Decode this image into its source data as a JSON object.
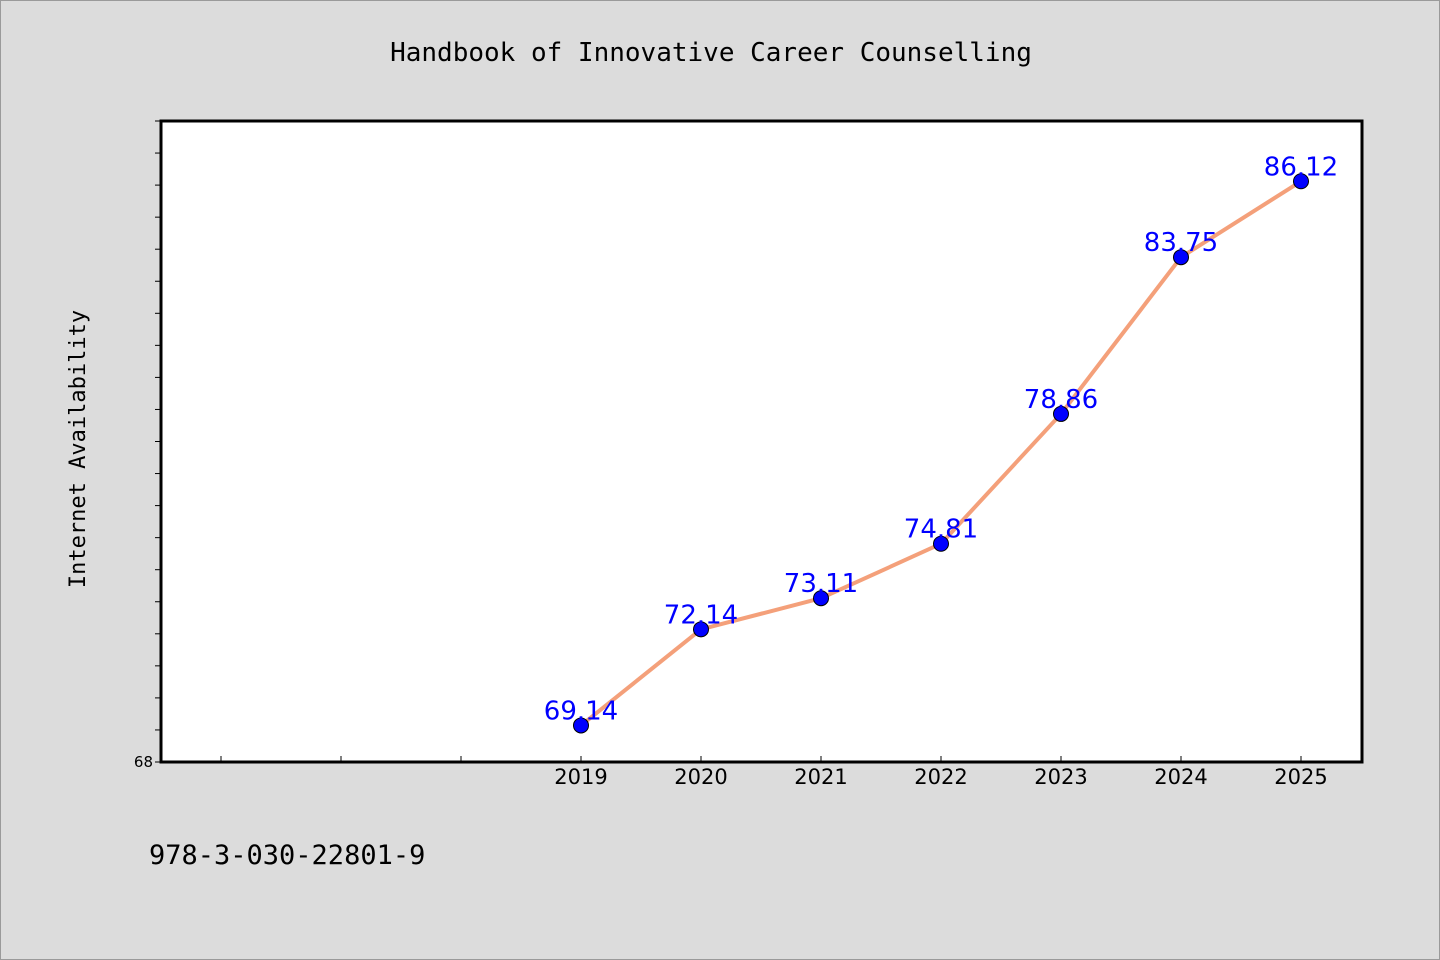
{
  "footer": {
    "isbn": "978-3-030-22801-9"
  },
  "colors": {
    "background": "#dcdcdc",
    "plot_background": "#ffffff",
    "line": "#f4a07a",
    "marker": "#0000ff",
    "data_label": "#0000ff"
  },
  "chart_data": {
    "type": "line",
    "title": "Handbook of Innovative Career Counselling",
    "xlabel": "",
    "ylabel": "Internet Availability",
    "x_categories": [
      "",
      "",
      "",
      "2019",
      "2020",
      "2021",
      "2022",
      "2023",
      "2024",
      "2025"
    ],
    "x": [
      "2019",
      "2020",
      "2021",
      "2022",
      "2023",
      "2024",
      "2025"
    ],
    "series": [
      {
        "values": [
          69.14,
          72.14,
          73.11,
          74.81,
          78.86,
          83.75,
          86.12
        ]
      }
    ],
    "data_labels": [
      "69.14",
      "72.14",
      "73.11",
      "74.81",
      "78.86",
      "83.75",
      "86.12"
    ],
    "ylim": [
      68,
      88
    ],
    "yticks": [
      68
    ],
    "ytick_labels": [
      "68"
    ],
    "grid": false,
    "legend": "none"
  }
}
